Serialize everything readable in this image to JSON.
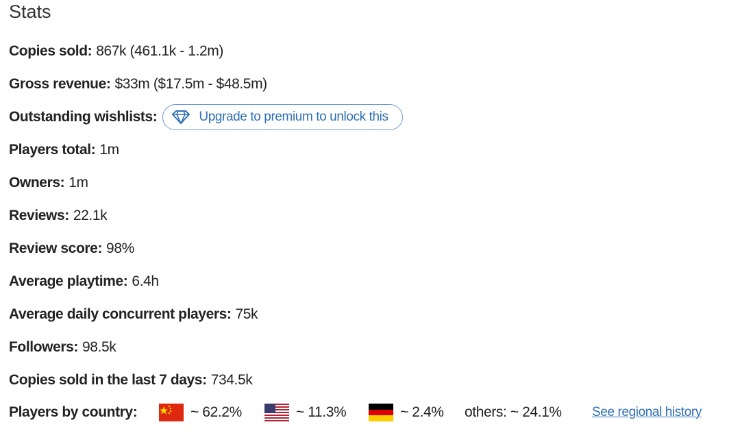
{
  "title": "Stats",
  "stats": [
    {
      "label": "Copies sold:",
      "value": "867k (461.1k - 1.2m)"
    },
    {
      "label": "Gross revenue:",
      "value": "$33m ($17.5m - $48.5m)"
    },
    {
      "label": "Outstanding wishlists:",
      "button": "Upgrade to premium to unlock this"
    },
    {
      "label": "Players total:",
      "value": "1m"
    },
    {
      "label": "Owners:",
      "value": "1m"
    },
    {
      "label": "Reviews:",
      "value": "22.1k"
    },
    {
      "label": "Review score:",
      "value": "98%"
    },
    {
      "label": "Average playtime:",
      "value": "6.4h"
    },
    {
      "label": "Average daily concurrent players:",
      "value": "75k"
    },
    {
      "label": "Followers:",
      "value": "98.5k"
    },
    {
      "label": "Copies sold in the last 7 days:",
      "value": "734.5k"
    }
  ],
  "players_by_country": {
    "label": "Players by country:",
    "countries": [
      {
        "share": "~ 62.2%"
      },
      {
        "share": "~ 11.3%"
      },
      {
        "share": "~ 2.4%"
      }
    ],
    "others": "others: ~ 24.1%",
    "link": "See regional history"
  }
}
